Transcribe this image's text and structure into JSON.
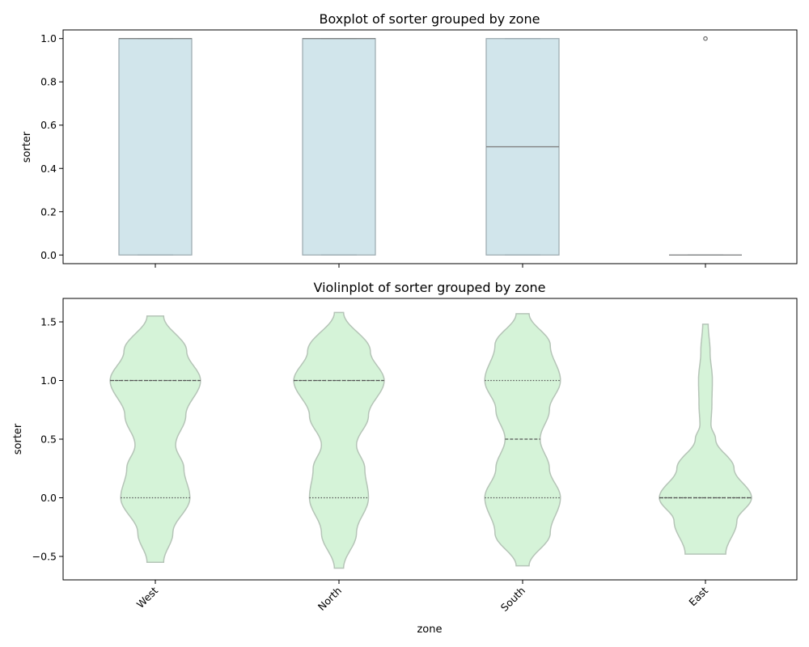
{
  "chart_data": [
    {
      "type": "box",
      "title": "Boxplot of sorter grouped by zone",
      "ylabel": "sorter",
      "xlabel": "",
      "ylim": [
        -0.04,
        1.04
      ],
      "yticks": [
        0.0,
        0.2,
        0.4,
        0.6,
        0.8,
        1.0
      ],
      "ytick_labels": [
        "0.0",
        "0.2",
        "0.4",
        "0.6",
        "0.8",
        "1.0"
      ],
      "categories": [
        "West",
        "North",
        "South",
        "East"
      ],
      "box_color": "#d1e5eb",
      "edge_color": "#9aa8ae",
      "median_color": "#7a7a7a",
      "boxes": [
        {
          "q1": 0,
          "median": 1,
          "q3": 1,
          "whisker_low": 0,
          "whisker_high": 1,
          "outliers": []
        },
        {
          "q1": 0,
          "median": 1,
          "q3": 1,
          "whisker_low": 0,
          "whisker_high": 1,
          "outliers": []
        },
        {
          "q1": 0,
          "median": 0.5,
          "q3": 1,
          "whisker_low": 0,
          "whisker_high": 1,
          "outliers": []
        },
        {
          "q1": 0,
          "median": 0,
          "q3": 0,
          "whisker_low": 0,
          "whisker_high": 0,
          "outliers": [
            1
          ]
        }
      ]
    },
    {
      "type": "violin",
      "title": "Violinplot of sorter grouped by zone",
      "ylabel": "sorter",
      "xlabel": "zone",
      "ylim": [
        -0.7,
        1.7
      ],
      "yticks": [
        -0.5,
        0.0,
        0.5,
        1.0,
        1.5
      ],
      "ytick_labels": [
        "−0.5",
        "0.0",
        "0.5",
        "1.0",
        "1.5"
      ],
      "categories": [
        "West",
        "North",
        "South",
        "East"
      ],
      "fill_color": "#d5f3d8",
      "edge_color": "#b5c4b7",
      "line_color": "#555555",
      "violins": [
        {
          "y_min": -0.55,
          "y_max": 1.55,
          "median": 1,
          "q1": 0,
          "q3": 1,
          "profile": [
            [
              -0.55,
              0.18
            ],
            [
              -0.3,
              0.38
            ],
            [
              0.0,
              0.75
            ],
            [
              0.25,
              0.62
            ],
            [
              0.45,
              0.44
            ],
            [
              0.7,
              0.66
            ],
            [
              1.0,
              0.98
            ],
            [
              1.25,
              0.68
            ],
            [
              1.55,
              0.18
            ]
          ]
        },
        {
          "y_min": -0.6,
          "y_max": 1.58,
          "median": 1,
          "q1": 0,
          "q3": 1,
          "profile": [
            [
              -0.6,
              0.1
            ],
            [
              -0.3,
              0.38
            ],
            [
              0.0,
              0.64
            ],
            [
              0.25,
              0.56
            ],
            [
              0.45,
              0.38
            ],
            [
              0.7,
              0.64
            ],
            [
              1.0,
              0.98
            ],
            [
              1.25,
              0.68
            ],
            [
              1.58,
              0.1
            ]
          ]
        },
        {
          "y_min": -0.58,
          "y_max": 1.57,
          "median": 0.5,
          "q1": 0,
          "q3": 1,
          "profile": [
            [
              -0.58,
              0.14
            ],
            [
              -0.3,
              0.6
            ],
            [
              0.0,
              0.82
            ],
            [
              0.25,
              0.58
            ],
            [
              0.5,
              0.38
            ],
            [
              0.75,
              0.58
            ],
            [
              1.0,
              0.82
            ],
            [
              1.3,
              0.6
            ],
            [
              1.57,
              0.14
            ]
          ]
        },
        {
          "y_min": -0.48,
          "y_max": 1.48,
          "median": 0,
          "q1": 0,
          "q3": 0,
          "profile": [
            [
              -0.48,
              0.44
            ],
            [
              -0.2,
              0.68
            ],
            [
              0.0,
              1.0
            ],
            [
              0.25,
              0.62
            ],
            [
              0.5,
              0.22
            ],
            [
              0.62,
              0.12
            ],
            [
              0.8,
              0.14
            ],
            [
              1.0,
              0.15
            ],
            [
              1.25,
              0.1
            ],
            [
              1.48,
              0.06
            ]
          ]
        }
      ]
    }
  ]
}
